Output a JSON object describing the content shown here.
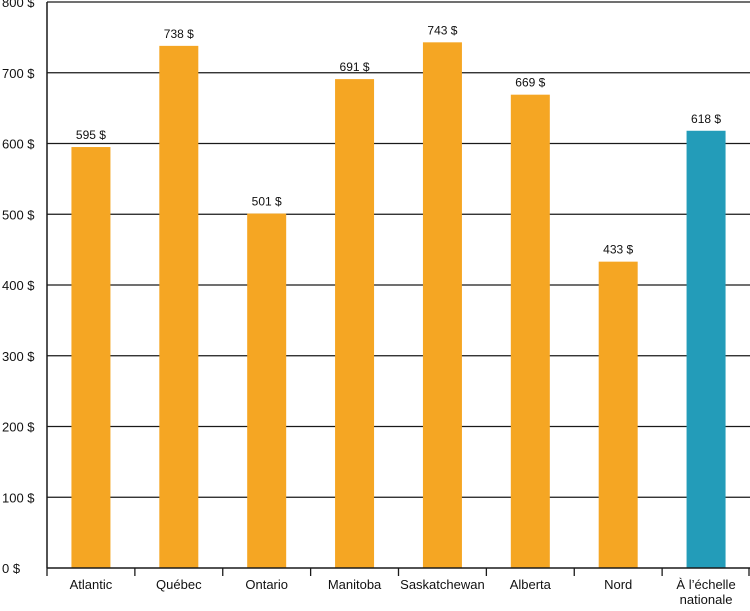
{
  "chart_data": {
    "type": "bar",
    "categories": [
      "Atlantic",
      "Québec",
      "Ontario",
      "Manitoba",
      "Saskatchewan",
      "Alberta",
      "Nord",
      "À l’échelle nationale"
    ],
    "category_label_lines": [
      [
        "Atlantic"
      ],
      [
        "Québec"
      ],
      [
        "Ontario"
      ],
      [
        "Manitoba"
      ],
      [
        "Saskatchewan"
      ],
      [
        "Alberta"
      ],
      [
        "Nord"
      ],
      [
        "À l’échelle",
        "nationale"
      ]
    ],
    "values": [
      595,
      738,
      501,
      691,
      743,
      669,
      433,
      618
    ],
    "data_labels": [
      "595 $",
      "738 $",
      "501 $",
      "691 $",
      "743 $",
      "669 $",
      "433 $",
      "618 $"
    ],
    "y_ticks": [
      0,
      100,
      200,
      300,
      400,
      500,
      600,
      700,
      800
    ],
    "y_tick_labels": [
      "0 $",
      "100 $",
      "200 $",
      "300 $",
      "400 $",
      "500 $",
      "600 $",
      "700 $",
      "800 $"
    ],
    "ylim": [
      0,
      800
    ],
    "grid": true,
    "title": "",
    "xlabel": "",
    "ylabel": ""
  },
  "colors": {
    "bar": "#f5a623",
    "highlight_bar": "#239cb9",
    "gridline": "#1a1a1a",
    "axis": "#1a1a1a",
    "background": "#ffffff"
  },
  "highlight_index": 7
}
